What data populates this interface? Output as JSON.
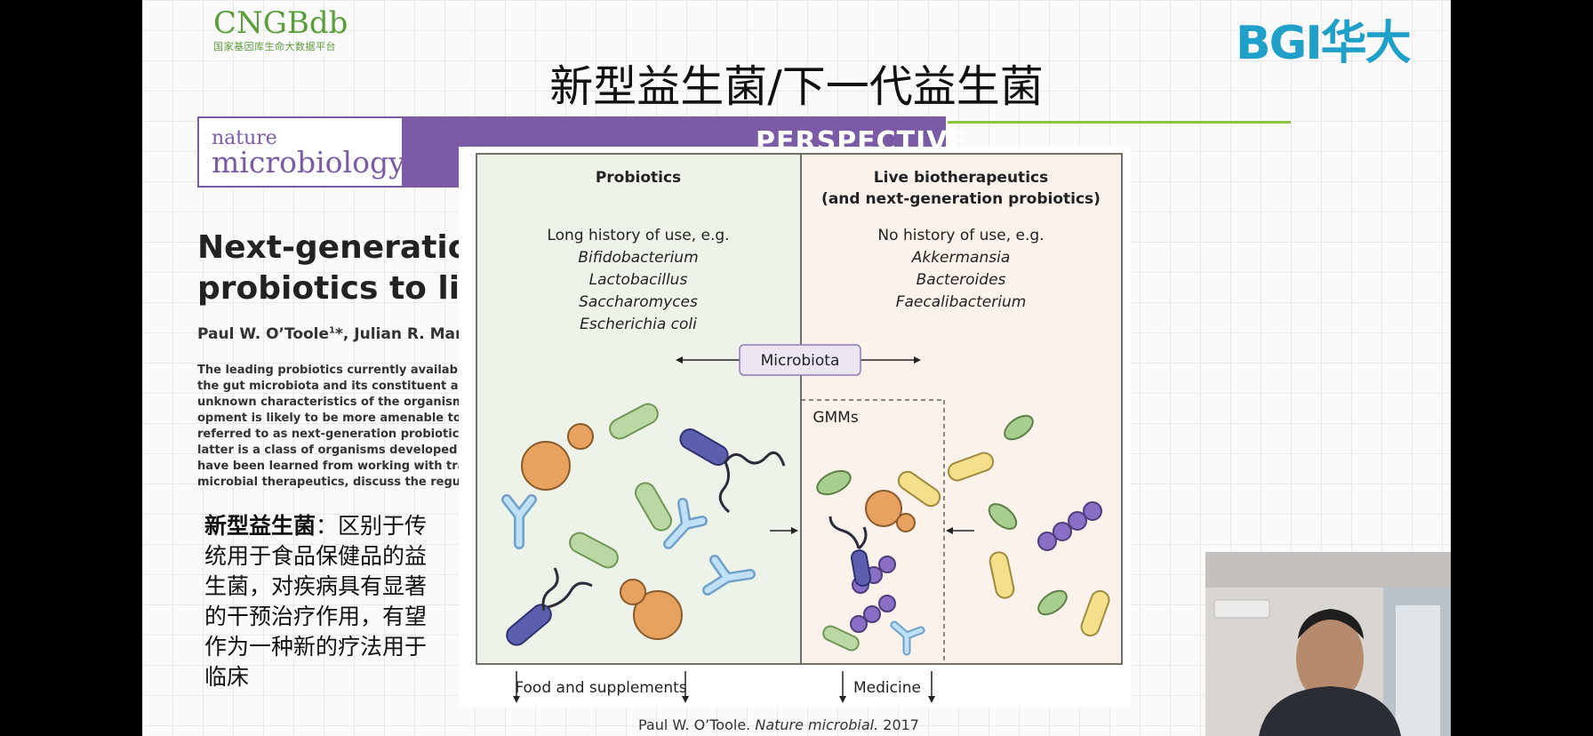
{
  "header": {
    "cngb_logo": "CNGBdb",
    "cngb_subtitle": "国家基因库生命大数据平台",
    "bgi_logo": "BGI华大",
    "slide_title": "新型益生菌/下一代益生菌"
  },
  "article": {
    "journal_top": "nature",
    "journal_main": "microbiology",
    "section": "PERSPECTIVE",
    "title_line1": "Next-generation p",
    "title_line2": "probiotics to live l",
    "authors_main": "Paul W. O’Toole",
    "authors_sup": "1",
    "authors_rest": "*, Julian R. Marche",
    "abstract_lines": [
      "The leading probiotics currently available to",
      "the gut microbiota and its constituent actors",
      "unknown characteristics of the organisms u",
      "opment is likely to be more amenable to a p",
      "referred to as next-generation probiotics, a c",
      "latter is a class of organisms developed excl",
      "have been learned from working with traditi",
      "microbial therapeutics, discuss the regulator"
    ]
  },
  "description": {
    "bold": "新型益生菌",
    "text": "：区别于传统用于食品保健品的益生菌，对疾病具有显著的干预治疗作用，有望作为一种新的疗法用于临床"
  },
  "figure": {
    "left_heading": "Probiotics",
    "left_history": "Long history of use, e.g.",
    "left_examples": [
      "Bifidobacterium",
      "Lactobacillus",
      "Saccharomyces",
      "Escherichia coli"
    ],
    "right_heading_line1": "Live biotherapeutics",
    "right_heading_line2": "(and next-generation probiotics)",
    "right_history": "No history of use, e.g.",
    "right_examples": [
      "Akkermansia",
      "Bacteroides",
      "Faecalibacterium"
    ],
    "center_label": "Microbiota",
    "gmms_label": "GMMs",
    "left_footer": "Food and supplements",
    "right_footer": "Medicine",
    "colors": {
      "left_bg": "#eef3ea",
      "right_bg": "#fbf2ec",
      "label_bg": "#ece6f3",
      "label_border": "#8f7ab6"
    }
  },
  "citation": {
    "author": "Paul W. O’Toole.",
    "journal": "Nature microbial.",
    "year": "2017"
  }
}
